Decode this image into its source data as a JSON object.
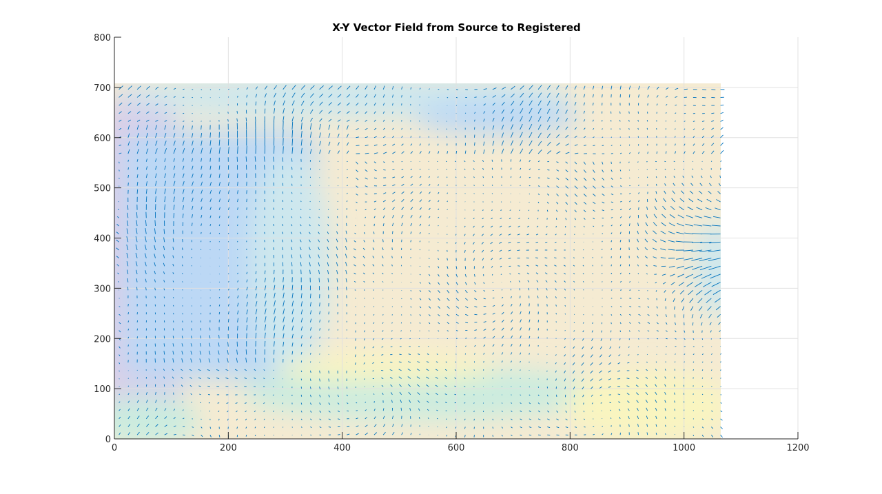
{
  "figure": {
    "title": "X-Y Vector Field from Source to Registered"
  },
  "chart_data": {
    "type": "vector_field",
    "title": "X-Y Vector Field from Source to Registered",
    "xlabel": "",
    "ylabel": "",
    "xlim": [
      0,
      1200
    ],
    "ylim": [
      0,
      800
    ],
    "xticks": [
      0,
      200,
      400,
      600,
      800,
      1000,
      1200
    ],
    "yticks": [
      0,
      100,
      200,
      300,
      400,
      500,
      600,
      700
    ],
    "grid": true,
    "background_image_extent": {
      "x": [
        0,
        1065
      ],
      "y": [
        0,
        708
      ]
    },
    "vector_grid_step": 16,
    "vector_color": "#0072bd",
    "dominant_flow": [
      {
        "region": "right edge",
        "x": 1050,
        "y": 360,
        "direction": "leftward/radial",
        "relative_magnitude": "large"
      },
      {
        "region": "top band",
        "x": 600,
        "y": 640,
        "direction": "diagonal",
        "relative_magnitude": "medium"
      },
      {
        "region": "left object",
        "x": 300,
        "y": 450,
        "direction": "vertical",
        "relative_magnitude": "medium"
      },
      {
        "region": "center",
        "x": 600,
        "y": 350,
        "direction": "mixed",
        "relative_magnitude": "small"
      }
    ],
    "background_colors": [
      "#bcd8f5",
      "#cde7ee",
      "#f5ebd2",
      "#f9f5c0",
      "#d9cfe8",
      "#cbecdf"
    ]
  }
}
